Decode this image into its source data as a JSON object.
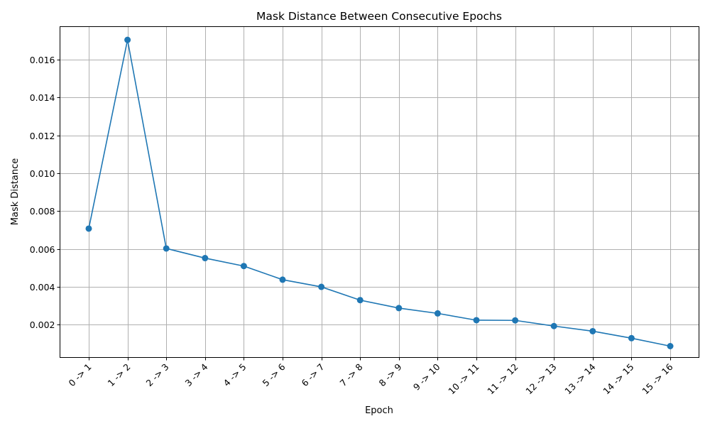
{
  "chart_data": {
    "type": "line",
    "title": "Mask Distance Between Consecutive Epochs",
    "xlabel": "Epoch",
    "ylabel": "Mask Distance",
    "categories": [
      "0 -> 1",
      "1 -> 2",
      "2 -> 3",
      "3 -> 4",
      "4 -> 5",
      "5 -> 6",
      "6 -> 7",
      "7 -> 8",
      "8 -> 9",
      "9 -> 10",
      "10 -> 11",
      "11 -> 12",
      "12 -> 13",
      "13 -> 14",
      "14 -> 15",
      "15 -> 16"
    ],
    "series": [
      {
        "values": [
          0.00708,
          0.01705,
          0.00603,
          0.00552,
          0.0051,
          0.00438,
          0.004,
          0.0033,
          0.00288,
          0.0026,
          0.00224,
          0.00223,
          0.00193,
          0.00166,
          0.00129,
          0.00087
        ],
        "color": "#1f77b4",
        "marker": "circle"
      }
    ],
    "ylim": [
      0.00027,
      0.01775
    ],
    "yticks": [
      0.002,
      0.004,
      0.006,
      0.008,
      0.01,
      0.012,
      0.014,
      0.016
    ],
    "ytick_labels": [
      "0.002",
      "0.004",
      "0.006",
      "0.008",
      "0.010",
      "0.012",
      "0.014",
      "0.016"
    ],
    "grid": true,
    "xtick_rotation": 45
  }
}
